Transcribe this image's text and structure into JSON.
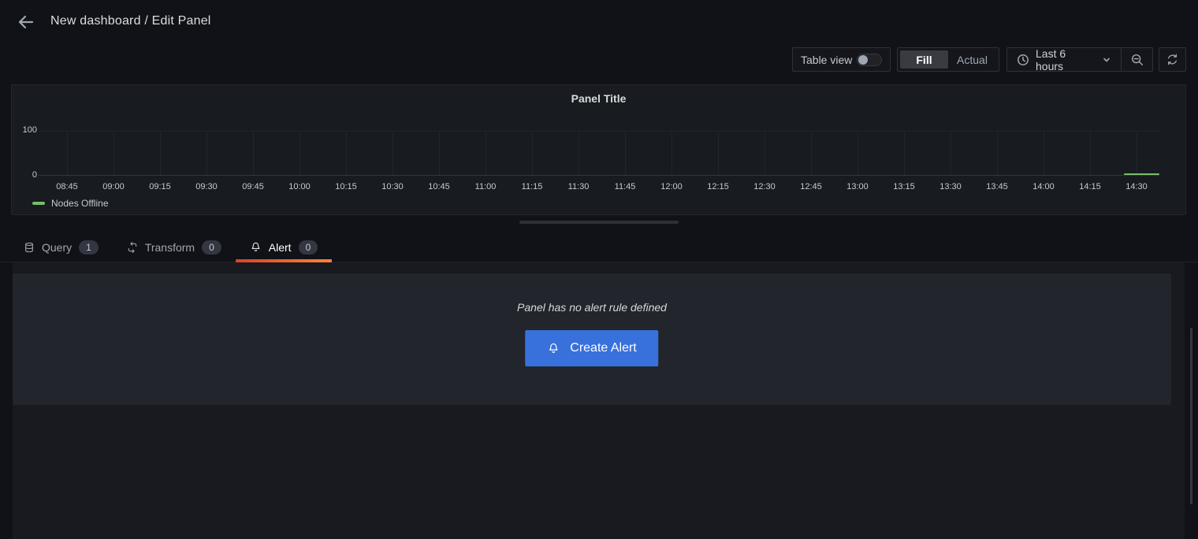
{
  "header": {
    "title": "New dashboard / Edit Panel"
  },
  "toolbar": {
    "table_view_label": "Table view",
    "table_view_on": false,
    "view_mode": {
      "options": [
        "Fill",
        "Actual"
      ],
      "selected": "Fill"
    },
    "time_range_label": "Last 6 hours"
  },
  "panel": {
    "title": "Panel Title",
    "legend": {
      "label": "Nodes Offline",
      "color": "#73bf69"
    }
  },
  "chart_data": {
    "type": "line",
    "title": "Panel Title",
    "xlabel": "",
    "ylabel": "",
    "ylim": [
      0,
      100
    ],
    "yticks": [
      100,
      0
    ],
    "grid": true,
    "legend_position": "bottom-left",
    "categories": [
      "08:45",
      "09:00",
      "09:15",
      "09:30",
      "09:45",
      "10:00",
      "10:15",
      "10:30",
      "10:45",
      "11:00",
      "11:15",
      "11:30",
      "11:45",
      "12:00",
      "12:15",
      "12:30",
      "12:45",
      "13:00",
      "13:15",
      "13:30",
      "13:45",
      "14:00",
      "14:15",
      "14:30"
    ],
    "series": [
      {
        "name": "Nodes Offline",
        "color": "#73bf69",
        "x": [
          "14:22",
          "14:37"
        ],
        "values": [
          0,
          0
        ]
      }
    ]
  },
  "tabs": [
    {
      "label": "Query",
      "count": "1",
      "icon": "database-icon",
      "active": false
    },
    {
      "label": "Transform",
      "count": "0",
      "icon": "process-icon",
      "active": false
    },
    {
      "label": "Alert",
      "count": "0",
      "icon": "bell-icon",
      "active": true
    }
  ],
  "alert_section": {
    "empty_message": "Panel has no alert rule defined",
    "create_button_label": "Create Alert"
  },
  "colors": {
    "accent_blue": "#3871dc",
    "series_green": "#73bf69",
    "tab_underline_start": "#d8432a",
    "tab_underline_end": "#fb8438"
  }
}
